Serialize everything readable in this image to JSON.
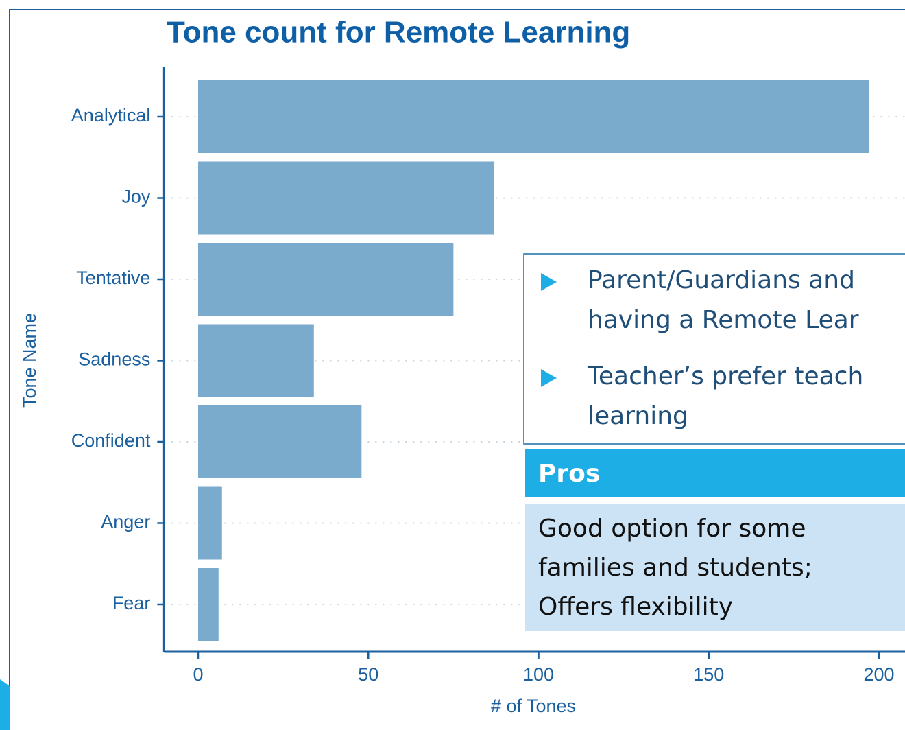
{
  "chart_data": {
    "type": "barh",
    "title": "Tone count for Remote Learning",
    "categories": [
      "Analytical",
      "Joy",
      "Tentative",
      "Sadness",
      "Confident",
      "Anger",
      "Fear"
    ],
    "values": [
      197,
      87,
      75,
      34,
      48,
      7,
      6
    ],
    "color": "#7aaacc",
    "xlim": [
      -10,
      210
    ],
    "xticks": [
      0,
      50,
      100,
      150,
      200
    ],
    "grid": true,
    "x_label": "# of Tones",
    "y_label": "Tone Name"
  },
  "overlay": {
    "bullets": [
      [
        "Parent/Guardians and",
        "having a Remote Lear"
      ],
      [
        "Teacher’s prefer teach",
        "learning"
      ]
    ],
    "pros": {
      "title": "Pros",
      "lines": [
        "Good option for some",
        "families and students;",
        "Offers flexibility"
      ]
    }
  }
}
